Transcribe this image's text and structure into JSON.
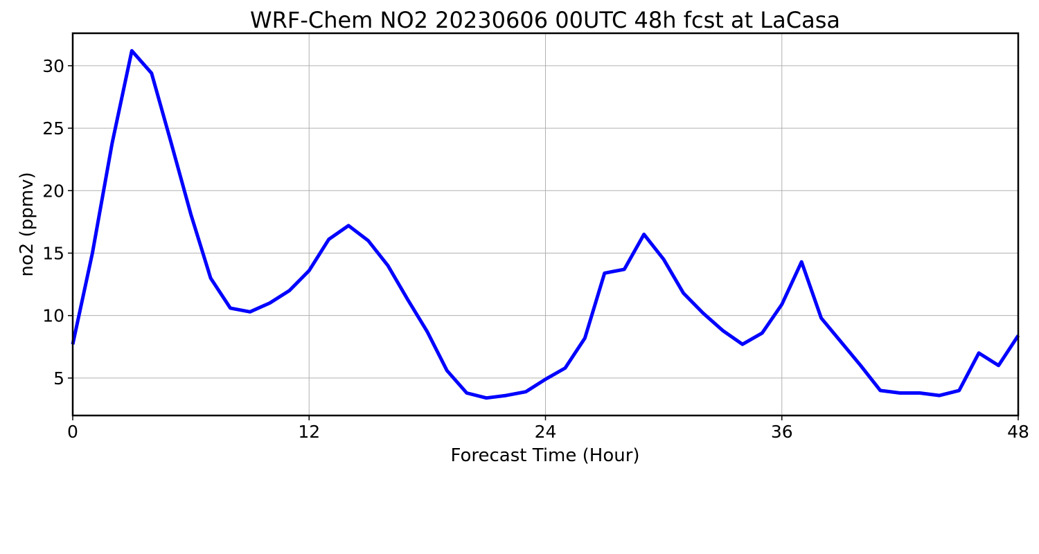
{
  "chart_data": {
    "type": "line",
    "title": "WRF-Chem NO2  20230606 00UTC 48h fcst at LaCasa",
    "xlabel": "Forecast Time (Hour)",
    "ylabel": "no2  (ppmv)",
    "xlim": [
      0,
      48
    ],
    "ylim": [
      2.0,
      32.6
    ],
    "xticks": [
      0,
      12,
      24,
      36,
      48
    ],
    "yticks": [
      5,
      10,
      15,
      20,
      25,
      30
    ],
    "grid": true,
    "line_color": "#0000ff",
    "x": [
      0,
      1,
      2,
      3,
      4,
      5,
      6,
      7,
      8,
      9,
      10,
      11,
      12,
      13,
      14,
      15,
      16,
      17,
      18,
      19,
      20,
      21,
      22,
      23,
      24,
      25,
      26,
      27,
      28,
      29,
      30,
      31,
      32,
      33,
      34,
      35,
      36,
      37,
      38,
      39,
      40,
      41,
      42,
      43,
      44,
      45,
      46,
      47,
      48
    ],
    "values": [
      7.7,
      15.0,
      23.8,
      31.2,
      29.4,
      23.8,
      18.1,
      13.0,
      10.6,
      10.3,
      11.0,
      12.0,
      13.6,
      16.1,
      17.2,
      16.0,
      14.0,
      11.3,
      8.7,
      5.6,
      3.8,
      3.4,
      3.6,
      3.9,
      4.9,
      5.8,
      8.2,
      13.4,
      13.7,
      16.5,
      14.5,
      11.8,
      10.2,
      8.8,
      7.7,
      8.6,
      10.9,
      14.3,
      9.8,
      7.9,
      6.0,
      4.0,
      3.8,
      3.8,
      3.6,
      4.0,
      7.0,
      6.0,
      8.4
    ]
  }
}
